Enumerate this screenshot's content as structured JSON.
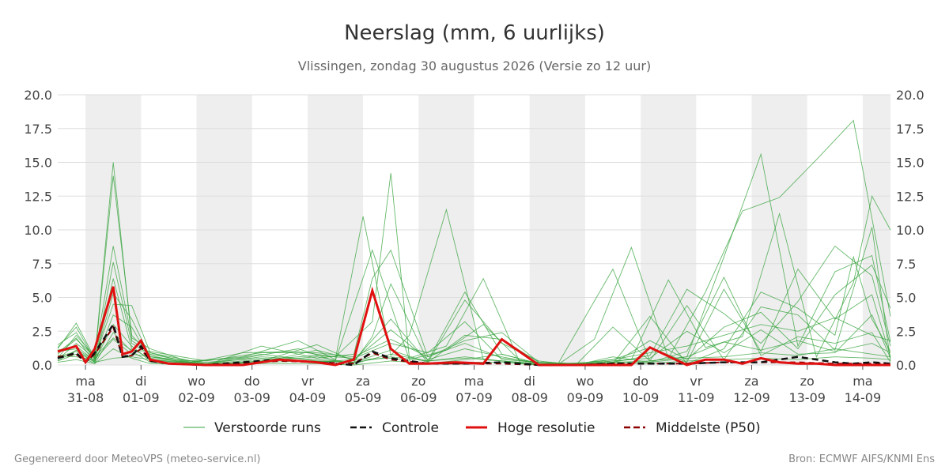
{
  "chart_data": {
    "type": "line",
    "title": "Neerslag (mm, 6 uurlijks)",
    "subtitle": "Vlissingen, zondag 30 augustus 2026 (Versie zo 12 uur)",
    "ylim": [
      0,
      20
    ],
    "yticks": [
      "0.0",
      "2.5",
      "5.0",
      "7.5",
      "10.0",
      "12.5",
      "15.0",
      "17.5",
      "20.0"
    ],
    "x_steps": 90,
    "x_day_ticks": [
      {
        "day": "ma",
        "date": "31-08"
      },
      {
        "day": "di",
        "date": "01-09"
      },
      {
        "day": "wo",
        "date": "02-09"
      },
      {
        "day": "do",
        "date": "03-09"
      },
      {
        "day": "vr",
        "date": "04-09"
      },
      {
        "day": "za",
        "date": "05-09"
      },
      {
        "day": "zo",
        "date": "06-09"
      },
      {
        "day": "ma",
        "date": "07-09"
      },
      {
        "day": "di",
        "date": "08-09"
      },
      {
        "day": "wo",
        "date": "09-09"
      },
      {
        "day": "do",
        "date": "10-09"
      },
      {
        "day": "vr",
        "date": "11-09"
      },
      {
        "day": "za",
        "date": "12-09"
      },
      {
        "day": "zo",
        "date": "13-09"
      },
      {
        "day": "ma",
        "date": "14-09"
      }
    ],
    "legend": [
      {
        "name": "Verstoorde runs",
        "color": "#33a13a",
        "style": "thin"
      },
      {
        "name": "Controle",
        "color": "#111111",
        "style": "dashed"
      },
      {
        "name": "Hoge resolutie",
        "color": "#e01010",
        "style": "solid"
      },
      {
        "name": "Middelste (P50)",
        "color": "#8b0000",
        "style": "dashed"
      }
    ],
    "colors": {
      "ensemble": "#33a13a",
      "control": "#111111",
      "hres": "#e01010",
      "median": "#8b0000",
      "weekend_band": "#eeeeee",
      "grid": "#dddddd"
    },
    "hres": {
      "x": [
        0,
        2,
        3,
        4,
        6,
        7,
        8,
        9,
        10,
        12,
        16,
        20,
        24,
        28,
        30,
        32,
        34,
        36,
        38,
        40,
        43,
        46,
        48,
        52,
        56,
        60,
        62,
        64,
        68,
        70,
        72,
        74,
        76,
        78,
        80,
        82,
        84,
        86,
        88,
        90
      ],
      "y": [
        1.0,
        1.4,
        0.2,
        1.2,
        5.8,
        0.8,
        1.0,
        1.8,
        0.4,
        0.1,
        0.0,
        0.0,
        0.4,
        0.2,
        0.0,
        0.4,
        5.5,
        1.2,
        0.1,
        0.1,
        0.2,
        0.1,
        1.9,
        0.0,
        0.0,
        0.0,
        0.0,
        1.3,
        0.0,
        0.4,
        0.4,
        0.1,
        0.5,
        0.2,
        0.1,
        0.1,
        0.0,
        0.0,
        0.0,
        0.0
      ]
    },
    "control": {
      "x": [
        0,
        2,
        3,
        4,
        6,
        7,
        8,
        9,
        10,
        12,
        16,
        20,
        24,
        28,
        32,
        34,
        36,
        40,
        44,
        48,
        52,
        56,
        60,
        64,
        68,
        72,
        76,
        80,
        84,
        86,
        88,
        90
      ],
      "y": [
        0.5,
        0.9,
        0.2,
        0.9,
        3.0,
        0.6,
        0.7,
        1.4,
        0.3,
        0.1,
        0.0,
        0.2,
        0.4,
        0.2,
        0.0,
        1.0,
        0.5,
        0.1,
        0.1,
        0.2,
        0.0,
        0.0,
        0.1,
        0.1,
        0.1,
        0.2,
        0.2,
        0.6,
        0.2,
        0.1,
        0.2,
        0.1
      ]
    },
    "median": {
      "x": [
        0,
        2,
        3,
        4,
        6,
        7,
        8,
        9,
        10,
        12,
        16,
        20,
        24,
        28,
        32,
        34,
        36,
        40,
        44,
        48,
        52,
        56,
        60,
        64,
        68,
        72,
        76,
        80,
        84,
        88,
        90
      ],
      "y": [
        0.6,
        0.8,
        0.2,
        0.8,
        2.8,
        0.6,
        0.7,
        1.2,
        0.3,
        0.1,
        0.0,
        0.1,
        0.3,
        0.2,
        0.1,
        0.9,
        0.4,
        0.1,
        0.1,
        0.1,
        0.0,
        0.0,
        0.1,
        0.1,
        0.1,
        0.2,
        0.2,
        0.2,
        0.1,
        0.1,
        0.1
      ]
    },
    "ensemble": [
      {
        "x": [
          0,
          2,
          4,
          6,
          8,
          10,
          14,
          20,
          26,
          30,
          33,
          36,
          38,
          42,
          46,
          50,
          54,
          60,
          64,
          68,
          72,
          76,
          80,
          84,
          88,
          90
        ],
        "y": [
          1.2,
          3.1,
          0.5,
          15.0,
          1.8,
          0.9,
          0.2,
          0.6,
          1.8,
          0.4,
          11.0,
          0.7,
          2.2,
          11.5,
          0.4,
          0.2,
          0.0,
          7.1,
          0.3,
          0.6,
          8.0,
          15.6,
          1.4,
          6.9,
          8.1,
          1.7
        ]
      },
      {
        "x": [
          0,
          2,
          4,
          6,
          8,
          10,
          14,
          20,
          26,
          30,
          34,
          36,
          38,
          42,
          46,
          50,
          54,
          58,
          62,
          66,
          70,
          74,
          78,
          82,
          86,
          90
        ],
        "y": [
          1.5,
          2.4,
          0.4,
          14.0,
          2.2,
          0.7,
          0.1,
          0.9,
          1.0,
          0.6,
          3.2,
          14.2,
          0.5,
          1.4,
          6.4,
          0.1,
          0.0,
          1.9,
          8.7,
          0.5,
          5.4,
          11.4,
          12.4,
          15.2,
          18.1,
          3.6
        ]
      },
      {
        "x": [
          0,
          2,
          4,
          6,
          8,
          10,
          14,
          20,
          26,
          30,
          34,
          38,
          42,
          46,
          50,
          54,
          58,
          62,
          66,
          70,
          74,
          78,
          82,
          86,
          88,
          90
        ],
        "y": [
          0.8,
          1.9,
          0.6,
          8.8,
          2.0,
          1.2,
          0.3,
          0.5,
          1.2,
          0.3,
          8.5,
          0.4,
          1.1,
          3.0,
          0.3,
          0.1,
          0.2,
          0.4,
          6.3,
          1.3,
          2.1,
          11.2,
          0.6,
          6.1,
          12.5,
          10.0
        ]
      },
      {
        "x": [
          0,
          2,
          4,
          6,
          8,
          10,
          16,
          22,
          28,
          32,
          34,
          36,
          40,
          44,
          48,
          52,
          56,
          60,
          64,
          68,
          72,
          76,
          80,
          84,
          88,
          90
        ],
        "y": [
          1.0,
          1.2,
          0.3,
          7.6,
          1.6,
          0.8,
          0.0,
          1.4,
          0.5,
          0.8,
          6.4,
          8.5,
          0.6,
          1.8,
          2.4,
          0.2,
          0.0,
          2.8,
          0.3,
          4.4,
          0.4,
          4.3,
          3.7,
          1.1,
          10.2,
          0.3
        ]
      },
      {
        "x": [
          0,
          2,
          4,
          6,
          8,
          10,
          16,
          22,
          28,
          32,
          34,
          36,
          40,
          44,
          48,
          52,
          56,
          60,
          64,
          68,
          72,
          76,
          80,
          84,
          88,
          90
        ],
        "y": [
          0.6,
          1.0,
          0.2,
          6.4,
          1.2,
          0.5,
          0.1,
          0.6,
          0.4,
          0.2,
          2.1,
          6.0,
          0.3,
          5.4,
          0.8,
          0.1,
          0.1,
          0.4,
          1.3,
          0.2,
          5.6,
          1.0,
          7.1,
          3.4,
          5.2,
          0.6
        ]
      },
      {
        "x": [
          0,
          2,
          4,
          6,
          8,
          10,
          16,
          22,
          28,
          32,
          36,
          40,
          44,
          48,
          52,
          56,
          60,
          64,
          68,
          72,
          76,
          80,
          84,
          86,
          88,
          90
        ],
        "y": [
          1.3,
          2.8,
          0.4,
          5.3,
          3.4,
          0.6,
          0.0,
          0.3,
          1.5,
          0.3,
          3.4,
          0.2,
          4.8,
          1.6,
          0.3,
          0.0,
          0.1,
          3.6,
          0.1,
          1.2,
          5.4,
          4.2,
          2.2,
          8.0,
          3.4,
          1.0
        ]
      },
      {
        "x": [
          0,
          2,
          4,
          6,
          8,
          10,
          16,
          22,
          28,
          32,
          36,
          40,
          44,
          48,
          52,
          56,
          60,
          64,
          68,
          72,
          76,
          80,
          84,
          88,
          90
        ],
        "y": [
          0.4,
          1.6,
          0.5,
          4.5,
          4.4,
          0.9,
          0.1,
          0.4,
          0.7,
          0.5,
          1.6,
          0.9,
          3.2,
          0.4,
          0.2,
          0.1,
          0.2,
          0.7,
          5.6,
          3.8,
          1.6,
          4.7,
          8.8,
          6.6,
          1.4
        ]
      },
      {
        "x": [
          0,
          2,
          4,
          6,
          8,
          10,
          16,
          22,
          28,
          32,
          36,
          40,
          44,
          48,
          52,
          56,
          60,
          64,
          68,
          72,
          76,
          80,
          84,
          88,
          90
        ],
        "y": [
          0.9,
          2.0,
          0.2,
          3.7,
          2.8,
          0.4,
          0.0,
          0.2,
          1.1,
          0.4,
          2.6,
          0.4,
          1.2,
          0.6,
          0.1,
          0.0,
          0.6,
          0.2,
          1.0,
          6.5,
          0.7,
          2.1,
          1.6,
          2.4,
          0.2
        ]
      },
      {
        "x": [
          0,
          2,
          4,
          6,
          8,
          10,
          16,
          22,
          28,
          32,
          36,
          40,
          44,
          48,
          52,
          56,
          60,
          64,
          68,
          72,
          76,
          80,
          84,
          88,
          90
        ],
        "y": [
          1.1,
          1.4,
          0.3,
          3.0,
          1.4,
          0.3,
          0.1,
          0.8,
          0.3,
          0.2,
          1.1,
          0.2,
          2.2,
          1.9,
          0.2,
          0.1,
          0.1,
          1.8,
          0.4,
          2.8,
          3.9,
          1.2,
          5.2,
          7.4,
          4.2
        ]
      },
      {
        "x": [
          0,
          2,
          4,
          6,
          8,
          10,
          16,
          22,
          28,
          32,
          36,
          40,
          44,
          48,
          52,
          56,
          60,
          64,
          68,
          72,
          76,
          80,
          84,
          88,
          90
        ],
        "y": [
          0.3,
          0.8,
          0.1,
          2.4,
          1.0,
          0.2,
          0.0,
          0.3,
          0.6,
          0.1,
          0.8,
          0.3,
          0.6,
          0.3,
          0.0,
          0.0,
          0.3,
          0.5,
          2.5,
          0.9,
          2.6,
          0.8,
          0.9,
          3.7,
          0.5
        ]
      },
      {
        "x": [
          0,
          2,
          4,
          6,
          8,
          10,
          16,
          22,
          28,
          32,
          36,
          40,
          44,
          48,
          52,
          56,
          60,
          64,
          68,
          72,
          76,
          80,
          84,
          88,
          90
        ],
        "y": [
          0.7,
          0.6,
          0.4,
          1.9,
          0.8,
          0.6,
          0.2,
          0.5,
          0.2,
          0.4,
          0.5,
          0.1,
          0.4,
          0.8,
          0.1,
          0.0,
          0.2,
          0.3,
          0.6,
          1.7,
          1.1,
          1.8,
          1.0,
          1.6,
          0.9
        ]
      },
      {
        "x": [
          0,
          2,
          4,
          6,
          8,
          10,
          16,
          22,
          28,
          32,
          36,
          40,
          44,
          48,
          52,
          56,
          60,
          64,
          68,
          72,
          76,
          80,
          84,
          88,
          90
        ],
        "y": [
          0.2,
          0.4,
          0.1,
          1.2,
          0.5,
          0.1,
          0.0,
          0.1,
          0.1,
          0.0,
          0.3,
          0.1,
          0.2,
          0.2,
          0.0,
          0.0,
          0.1,
          0.1,
          0.3,
          0.4,
          0.5,
          0.4,
          0.6,
          0.5,
          0.4
        ]
      },
      {
        "x": [
          0,
          2,
          4,
          6,
          8,
          10,
          16,
          22,
          28,
          32,
          36,
          40,
          44,
          48,
          52,
          56,
          60,
          64,
          68,
          72,
          76,
          80,
          84,
          88,
          90
        ],
        "y": [
          0.5,
          2.2,
          0.6,
          2.0,
          1.1,
          1.0,
          0.3,
          0.9,
          0.9,
          0.6,
          1.9,
          0.6,
          1.6,
          0.5,
          0.2,
          0.1,
          0.4,
          0.9,
          1.4,
          2.2,
          3.0,
          2.5,
          3.5,
          2.2,
          1.8
        ]
      },
      {
        "x": [
          0,
          2,
          4,
          6,
          8,
          10,
          16,
          22,
          28,
          32,
          36,
          40,
          44,
          48,
          52,
          56,
          60,
          64,
          68,
          72,
          76,
          80,
          84,
          88,
          90
        ],
        "y": [
          0.3,
          1.1,
          0.2,
          0.5,
          0.6,
          0.4,
          0.1,
          0.2,
          0.3,
          0.2,
          0.6,
          0.3,
          0.5,
          0.3,
          0.1,
          0.0,
          0.2,
          0.2,
          0.5,
          0.6,
          0.9,
          0.7,
          1.2,
          0.8,
          0.6
        ]
      }
    ],
    "footer_left": "Gegenereerd door MeteoVPS (meteo-service.nl)",
    "footer_right": "Bron: ECMWF AIFS/KNMI Ens"
  }
}
